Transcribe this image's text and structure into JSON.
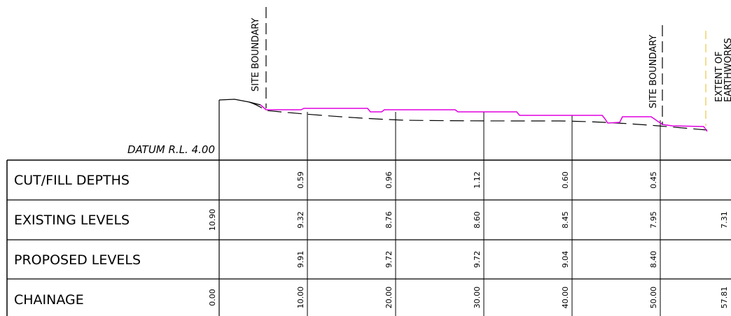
{
  "datum_label": "DATUM R.L. 4.00",
  "annotations": {
    "site_boundary_left": "SITE BOUNDARY",
    "site_boundary_right": "SITE BOUNDARY",
    "extent_line1": "EXTENT OF",
    "extent_line2": "EARTHWORKS"
  },
  "rows": [
    {
      "label": "CUT/FILL DEPTHS",
      "values": [
        "",
        "0.59",
        "0.96",
        "1.12",
        "0.60",
        "0.45",
        ""
      ]
    },
    {
      "label": "EXISTING LEVELS",
      "values": [
        "10.90",
        "9.32",
        "8.76",
        "8.60",
        "8.45",
        "7.95",
        "7.31"
      ]
    },
    {
      "label": "PROPOSED LEVELS",
      "values": [
        "",
        "9.91",
        "9.72",
        "9.72",
        "9.04",
        "8.40",
        ""
      ]
    },
    {
      "label": "CHAINAGE",
      "values": [
        "0.00",
        "10.00",
        "20.00",
        "30.00",
        "40.00",
        "50.00",
        "57.81"
      ]
    }
  ],
  "colors": {
    "proposed_line": "#e000e0",
    "existing_line": "#000000",
    "extent_line": "#e8c84a"
  }
}
